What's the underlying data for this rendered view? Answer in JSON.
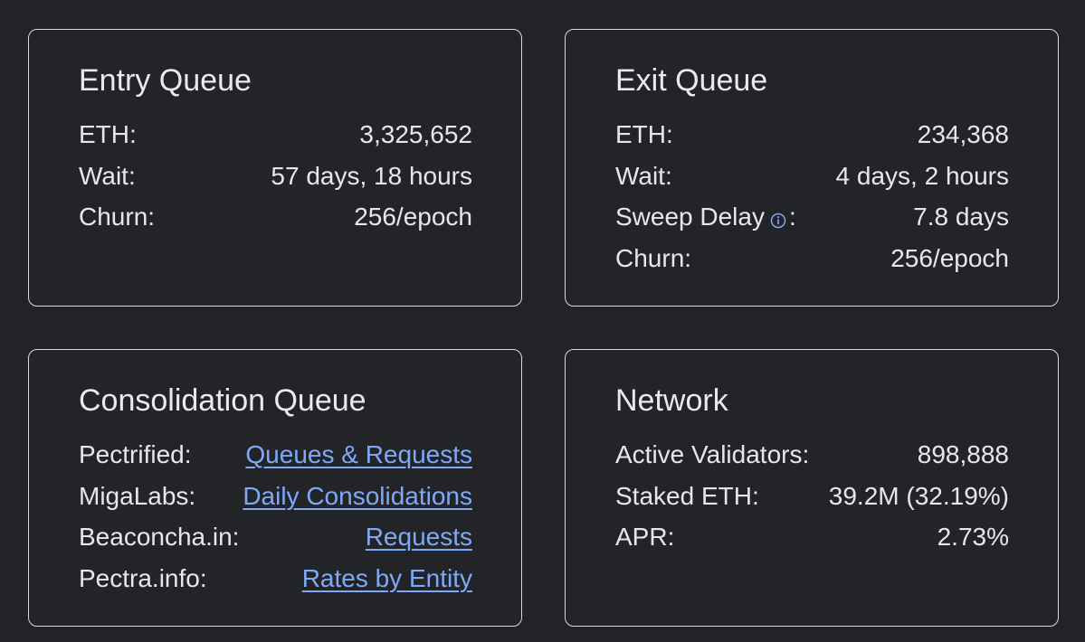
{
  "entry_queue": {
    "title": "Entry Queue",
    "rows": [
      {
        "label": "ETH:",
        "value": "3,325,652"
      },
      {
        "label": "Wait:",
        "value": "57 days, 18 hours"
      },
      {
        "label": "Churn:",
        "value": "256/epoch"
      }
    ]
  },
  "exit_queue": {
    "title": "Exit Queue",
    "rows": [
      {
        "label": "ETH:",
        "value": "234,368"
      },
      {
        "label": "Wait:",
        "value": "4 days, 2 hours"
      },
      {
        "label": "Sweep Delay",
        "label_suffix": ":",
        "value": "7.8 days",
        "icon": "info-icon"
      },
      {
        "label": "Churn:",
        "value": "256/epoch"
      }
    ]
  },
  "consolidation_queue": {
    "title": "Consolidation Queue",
    "rows": [
      {
        "label": "Pectrified:",
        "link": "Queues & Requests"
      },
      {
        "label": "MigaLabs:",
        "link": "Daily Consolidations"
      },
      {
        "label": "Beaconcha.in:",
        "link": "Requests"
      },
      {
        "label": "Pectra.info:",
        "link": "Rates by Entity"
      }
    ]
  },
  "network": {
    "title": "Network",
    "rows": [
      {
        "label": "Active Validators:",
        "value": "898,888"
      },
      {
        "label": "Staked ETH:",
        "value": "39.2M (32.19%)"
      },
      {
        "label": "APR:",
        "value": "2.73%"
      }
    ]
  },
  "colors": {
    "background": "#212327",
    "card_border": "#d8d9dc",
    "text": "#e6e7e9",
    "link": "#7fa9f5"
  }
}
